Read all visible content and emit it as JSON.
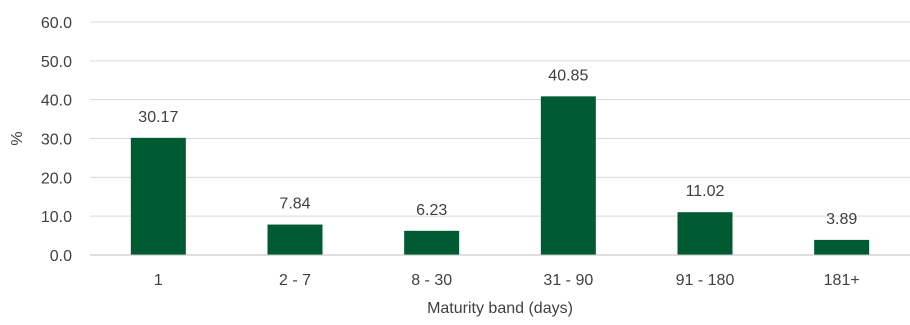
{
  "chart_data": {
    "type": "bar",
    "title": "",
    "xlabel": "Maturity band (days)",
    "ylabel": "%",
    "ylim": [
      0,
      60
    ],
    "yticks": [
      0,
      10,
      20,
      30,
      40,
      50,
      60
    ],
    "ytick_labels": [
      "0.0",
      "10.0",
      "20.0",
      "30.0",
      "40.0",
      "50.0",
      "60.0"
    ],
    "categories": [
      "1",
      "2 - 7",
      "8 - 30",
      "31 - 90",
      "91 - 180",
      "181+"
    ],
    "values": [
      30.17,
      7.84,
      6.23,
      40.85,
      11.02,
      3.89
    ],
    "data_labels": [
      "30.17",
      "7.84",
      "6.23",
      "40.85",
      "11.02",
      "3.89"
    ],
    "bar_color": "#005a32",
    "grid": true,
    "legend": "none"
  }
}
